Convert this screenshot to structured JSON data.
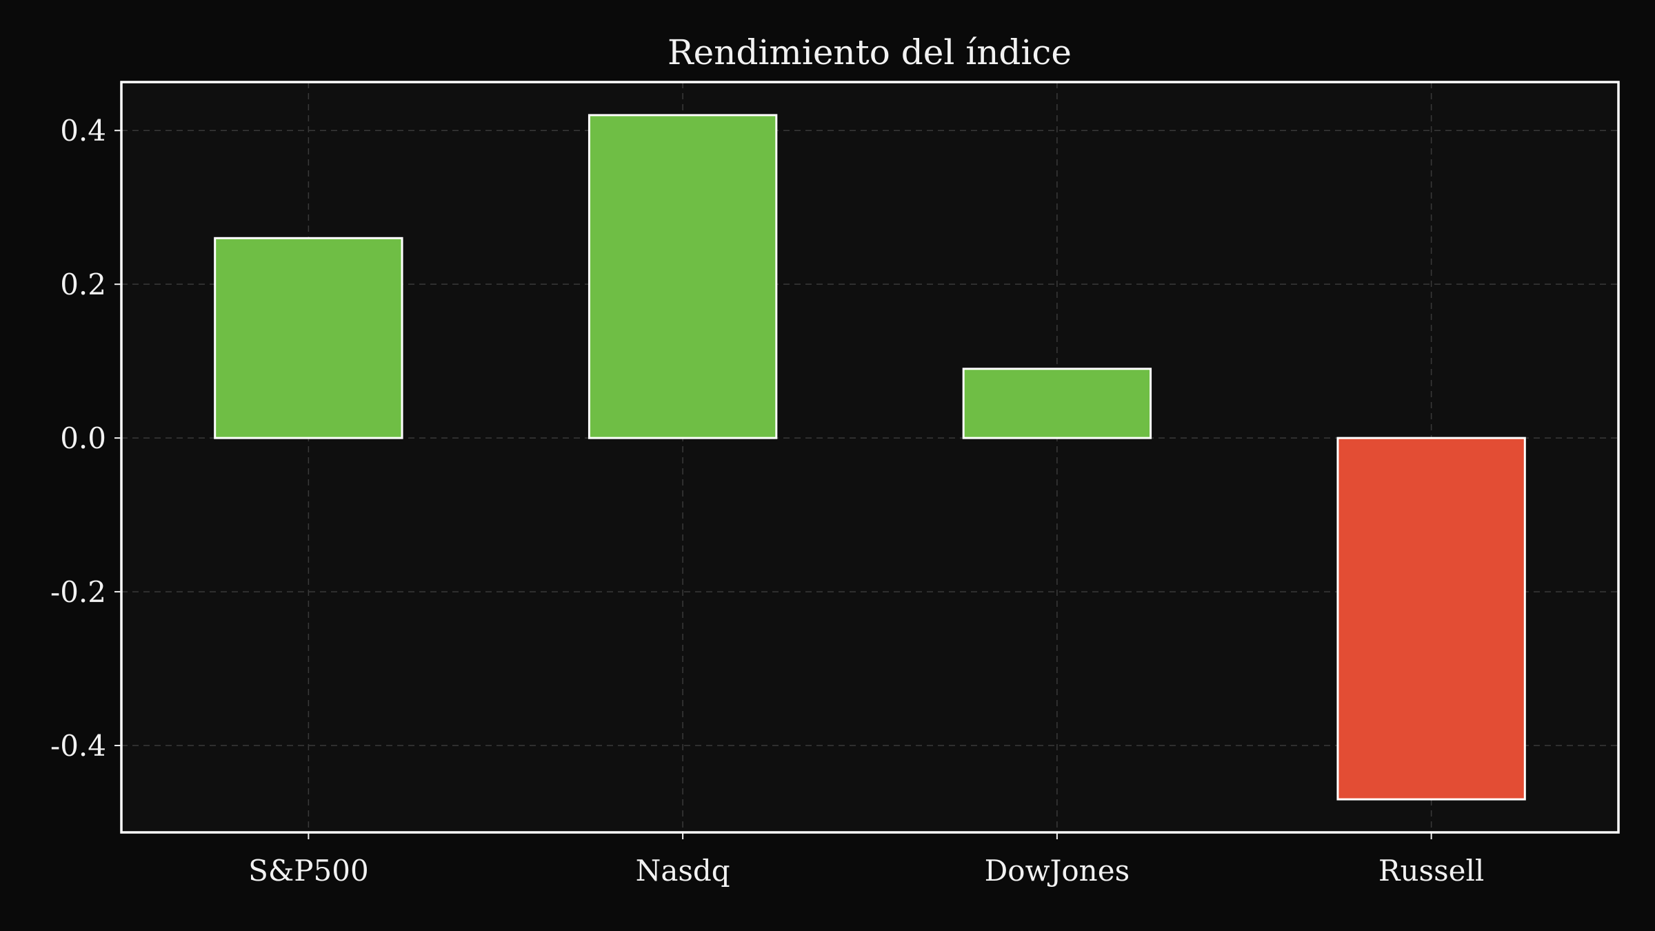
{
  "chart_data": {
    "type": "bar",
    "title": "Rendimiento del índice",
    "xlabel": "",
    "ylabel": "",
    "categories": [
      "S&P500",
      "Nasdq",
      "DowJones",
      "Russell"
    ],
    "values": [
      0.26,
      0.42,
      0.09,
      -0.47
    ],
    "ylim": [
      -0.513,
      0.463
    ],
    "yticks": [
      0.4,
      0.2,
      0.0,
      -0.2,
      -0.4
    ],
    "ytick_labels": [
      "0.4",
      "0.2",
      "0.0",
      "-0.2",
      "-0.4"
    ],
    "grid": true,
    "colors": {
      "positive": "#6fbe45",
      "negative": "#e34d34",
      "background": "#0a0a0a",
      "plot_background": "#0f0f0f",
      "frame": "#ffffff",
      "text": "#f2f2f2"
    }
  }
}
